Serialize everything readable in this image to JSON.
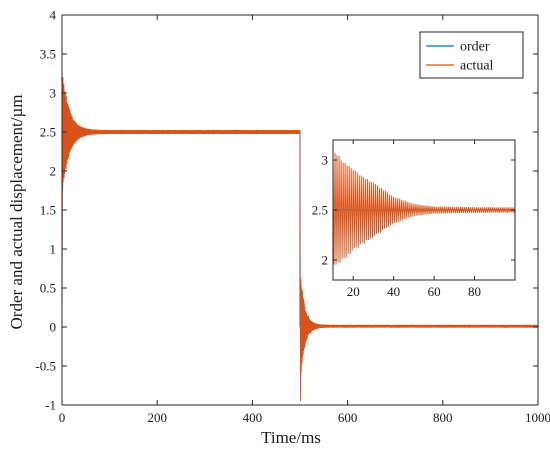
{
  "chart_data": {
    "type": "line",
    "xlabel": "Time/ms",
    "ylabel": "Order and actual displacement/µm",
    "xlim": [
      0,
      1000
    ],
    "ylim": [
      -1,
      4
    ],
    "x_ticks": [
      0,
      200,
      400,
      600,
      800,
      1000
    ],
    "y_ticks": [
      -1,
      -0.5,
      0,
      0.5,
      1,
      1.5,
      2,
      2.5,
      3,
      3.5,
      4
    ],
    "legend": {
      "position": "top-right",
      "entries": [
        "order",
        "actual"
      ]
    },
    "series": [
      {
        "name": "order",
        "color": "#0072BD",
        "x": [
          0,
          500,
          500,
          1000
        ],
        "values": [
          2.5,
          2.5,
          0,
          0
        ]
      },
      {
        "name": "actual",
        "color": "#D95319",
        "x": [
          0,
          2,
          5,
          10,
          20,
          30,
          40,
          50,
          100,
          200,
          300,
          400,
          495,
          500,
          502,
          505,
          510,
          520,
          530,
          550,
          600,
          700,
          800,
          900,
          1000
        ],
        "values": [
          0,
          3.35,
          1.75,
          3.15,
          2.9,
          2.75,
          2.65,
          2.55,
          2.5,
          2.5,
          2.5,
          2.5,
          2.5,
          2.5,
          -0.95,
          0.75,
          -0.3,
          0.25,
          0.1,
          0.02,
          0.02,
          0.02,
          0.02,
          0.02,
          0.02
        ],
        "oscillation": "damped oscillation around the order value after each step"
      }
    ],
    "inset": {
      "xlim": [
        10,
        100
      ],
      "ylim": [
        1.8,
        3.2
      ],
      "x_ticks": [
        20,
        40,
        60,
        80
      ],
      "y_ticks": [
        2,
        2.5,
        3
      ],
      "series": [
        {
          "name": "order",
          "x": [
            10,
            100
          ],
          "values": [
            2.5,
            2.5
          ]
        },
        {
          "name": "actual",
          "x": [
            10,
            20,
            30,
            40,
            50,
            60,
            80,
            100
          ],
          "amplitude": [
            0.65,
            0.45,
            0.3,
            0.15,
            0.07,
            0.04,
            0.03,
            0.03
          ],
          "center": 2.5
        }
      ]
    }
  }
}
